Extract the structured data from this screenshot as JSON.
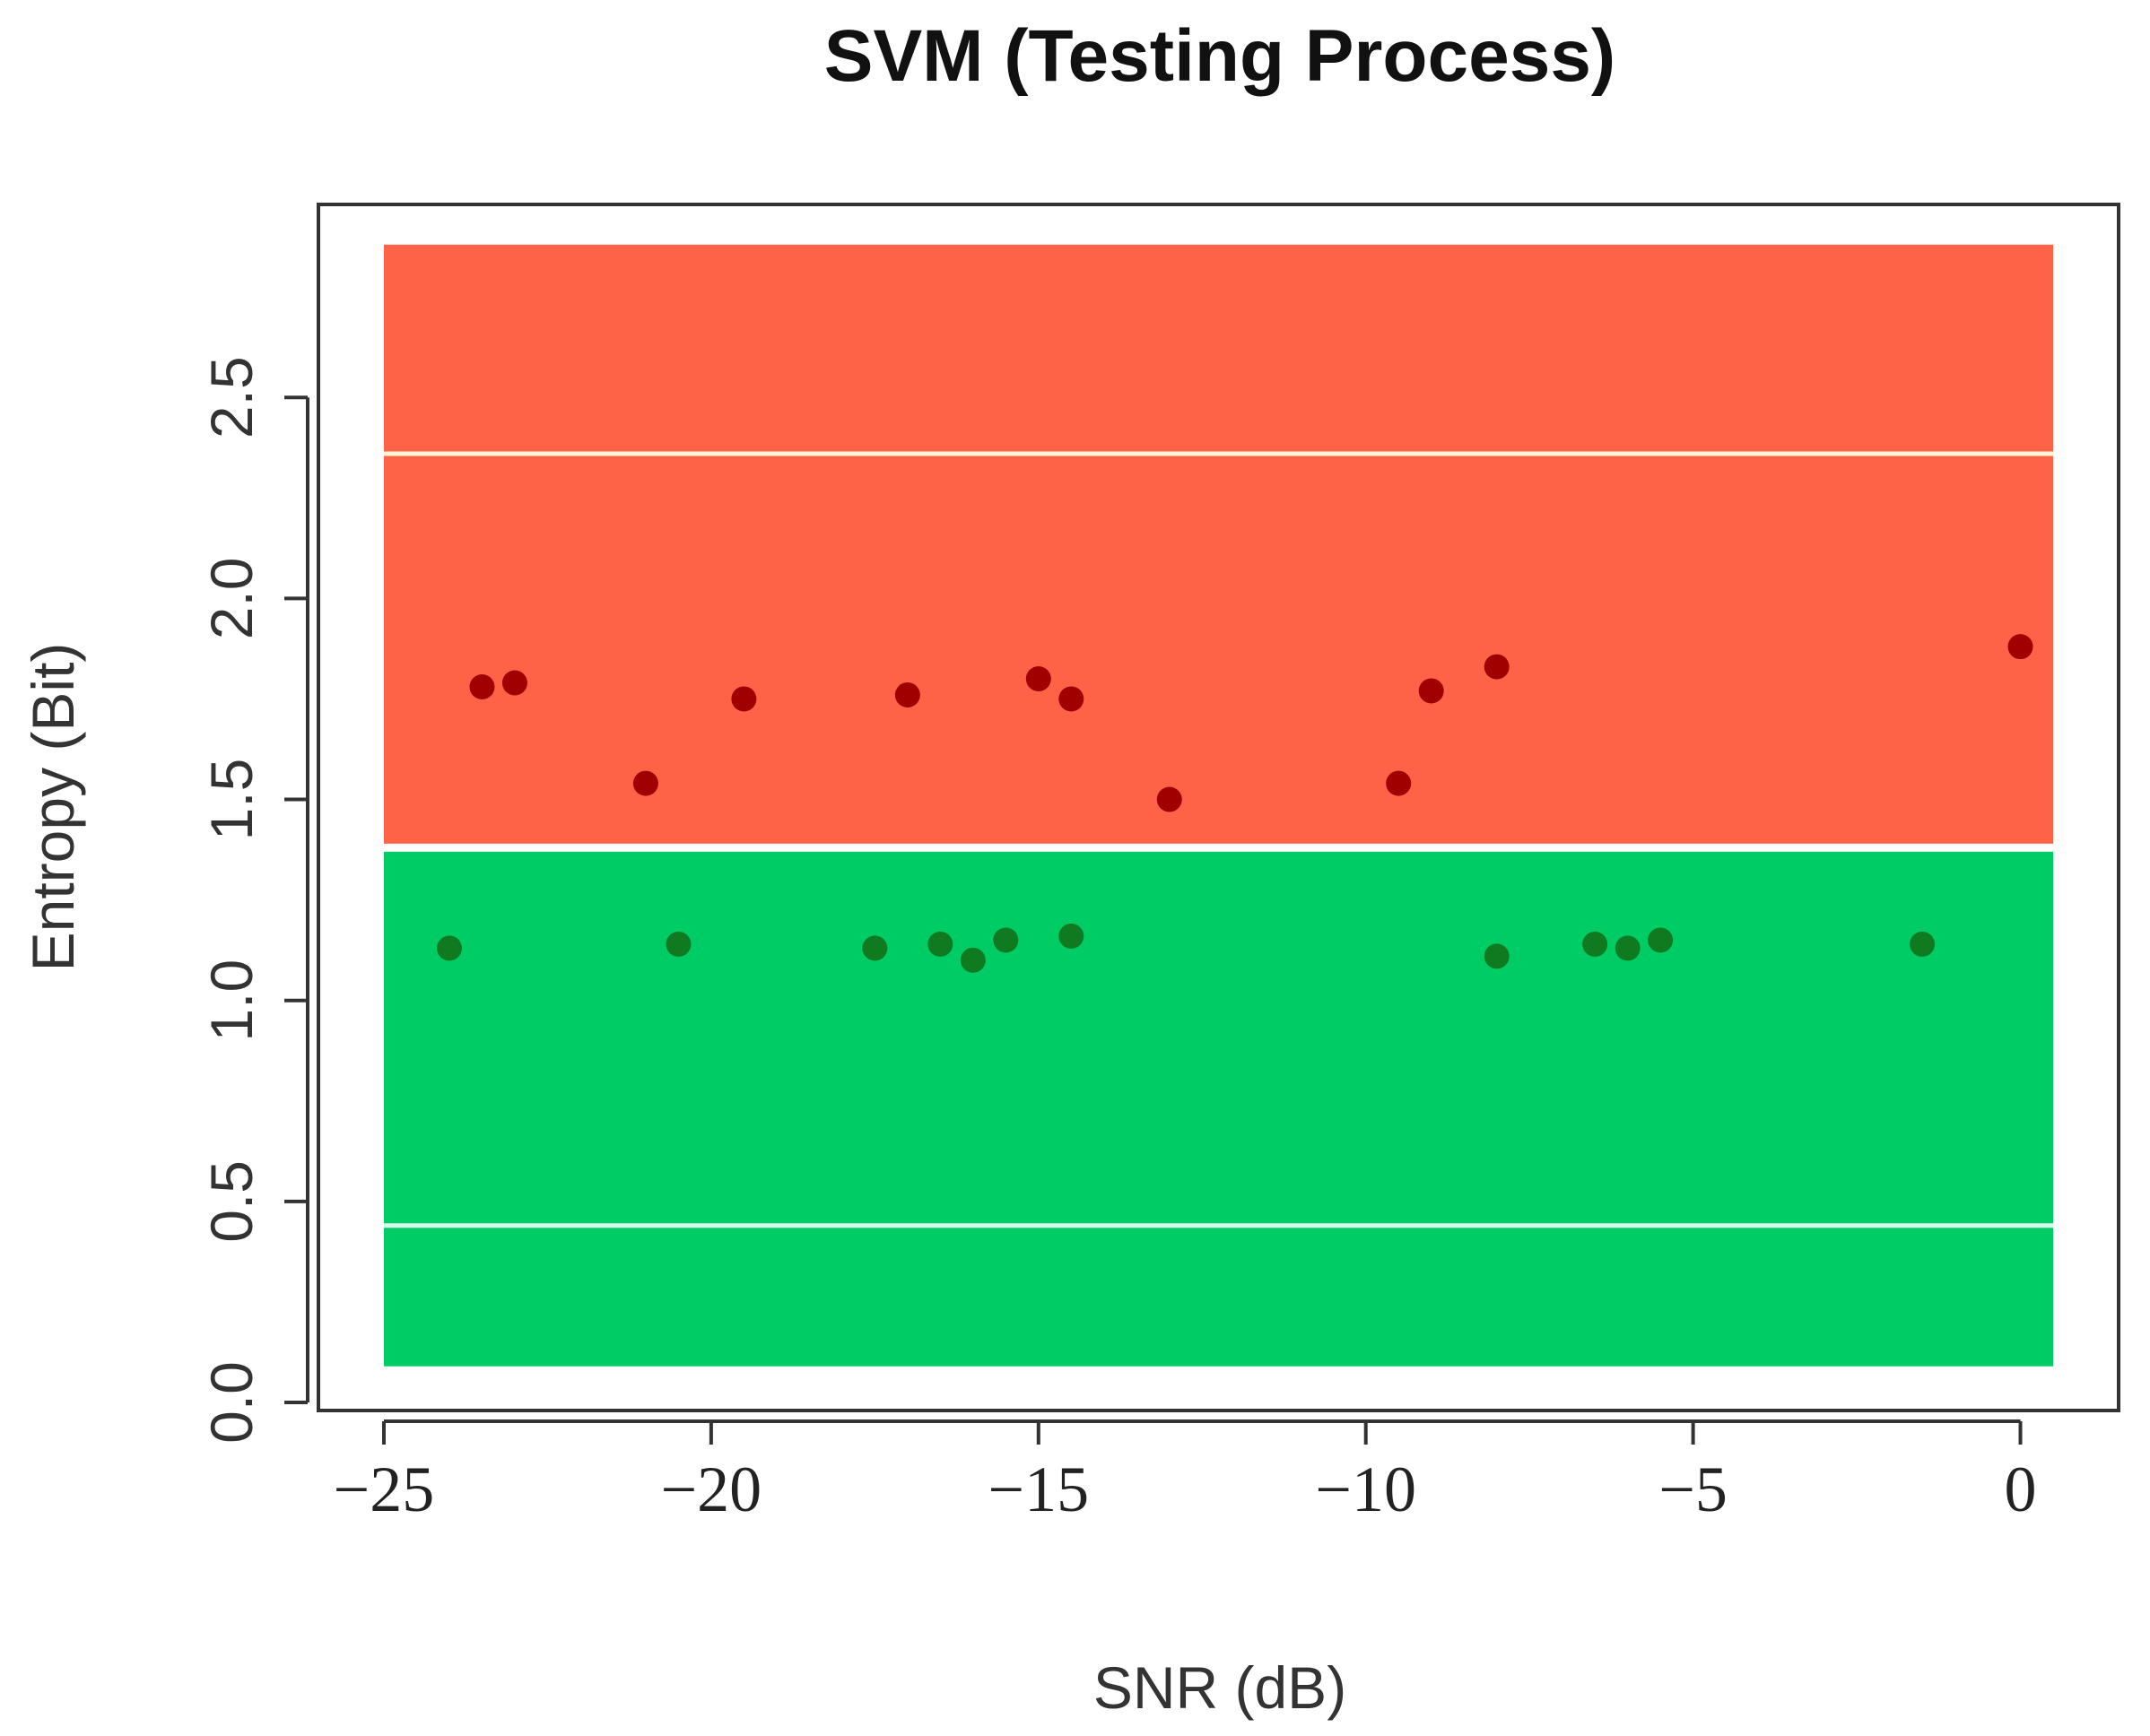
{
  "chart_data": {
    "type": "scatter",
    "title": "SVM (Testing Process)",
    "xlabel": "SNR (dB)",
    "ylabel": "Entropy (Bit)",
    "xlim": [
      -26.0,
      1.5
    ],
    "ylim": [
      -0.02,
      2.98
    ],
    "x_ticks": [
      -25,
      -20,
      -15,
      -10,
      -5,
      0
    ],
    "x_tick_labels": [
      "−25",
      "−20",
      "−15",
      "−10",
      "−5",
      "0"
    ],
    "y_ticks": [
      0.0,
      0.5,
      1.0,
      1.5,
      2.0,
      2.5
    ],
    "y_tick_labels": [
      "0.0",
      "0.5",
      "1.0",
      "1.5",
      "2.0",
      "2.5"
    ],
    "regions": [
      {
        "name": "upper-class-region",
        "color": "#ff6347",
        "x_range": [
          -25,
          0.5
        ],
        "y_range": [
          1.39,
          2.88
        ]
      },
      {
        "name": "lower-class-region",
        "color": "#00cc66",
        "x_range": [
          -25,
          0.5
        ],
        "y_range": [
          0.09,
          1.37
        ]
      }
    ],
    "reference_lines": [
      {
        "name": "upper-reference-line",
        "y": 2.36,
        "color": "#fff5d6"
      },
      {
        "name": "lower-reference-line",
        "y": 0.44,
        "color": "#d6fff0"
      }
    ],
    "series": [
      {
        "name": "red-class",
        "color": "#a00000",
        "points": [
          {
            "x": -23.5,
            "y": 1.78
          },
          {
            "x": -23.0,
            "y": 1.79
          },
          {
            "x": -21.0,
            "y": 1.54
          },
          {
            "x": -19.5,
            "y": 1.75
          },
          {
            "x": -17.0,
            "y": 1.76
          },
          {
            "x": -15.0,
            "y": 1.8
          },
          {
            "x": -14.5,
            "y": 1.75
          },
          {
            "x": -13.0,
            "y": 1.5
          },
          {
            "x": -9.5,
            "y": 1.54
          },
          {
            "x": -9.0,
            "y": 1.77
          },
          {
            "x": -8.0,
            "y": 1.83
          },
          {
            "x": 0.0,
            "y": 1.88
          }
        ]
      },
      {
        "name": "green-class",
        "color": "#107a20",
        "points": [
          {
            "x": -24.0,
            "y": 1.13
          },
          {
            "x": -20.5,
            "y": 1.14
          },
          {
            "x": -17.5,
            "y": 1.13
          },
          {
            "x": -16.5,
            "y": 1.14
          },
          {
            "x": -16.0,
            "y": 1.1
          },
          {
            "x": -15.5,
            "y": 1.15
          },
          {
            "x": -14.5,
            "y": 1.16
          },
          {
            "x": -8.0,
            "y": 1.11
          },
          {
            "x": -6.5,
            "y": 1.14
          },
          {
            "x": -6.0,
            "y": 1.13
          },
          {
            "x": -5.5,
            "y": 1.15
          },
          {
            "x": -1.5,
            "y": 1.14
          }
        ]
      }
    ]
  }
}
